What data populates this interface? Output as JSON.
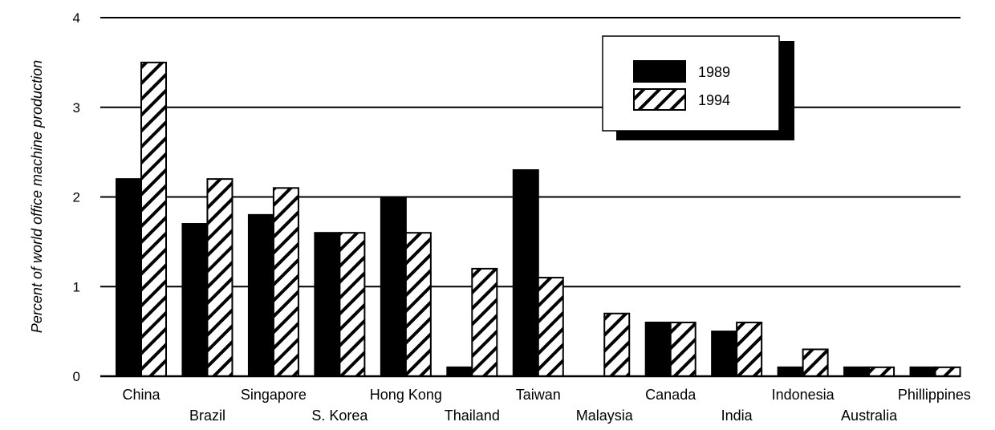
{
  "chart_data": {
    "type": "bar",
    "title": "",
    "xlabel": "",
    "ylabel": "Percent of world office machine production",
    "ylim": [
      0,
      4
    ],
    "yticks": [
      "0",
      "1",
      "2",
      "3",
      "4"
    ],
    "grid": true,
    "legend_position": "top-right",
    "categories": [
      "China",
      "Brazil",
      "Singapore",
      "S. Korea",
      "Hong Kong",
      "Thailand",
      "Taiwan",
      "Malaysia",
      "Canada",
      "India",
      "Indonesia",
      "Australia",
      "Phillippines"
    ],
    "series": [
      {
        "name": "1989",
        "values": [
          2.2,
          1.7,
          1.8,
          1.6,
          2.0,
          0.1,
          2.3,
          0.0,
          0.6,
          0.5,
          0.1,
          0.1,
          0.1
        ],
        "color": "#000000",
        "pattern": "solid"
      },
      {
        "name": "1994",
        "values": [
          3.5,
          2.2,
          2.1,
          1.6,
          1.6,
          1.2,
          1.1,
          0.7,
          0.6,
          0.6,
          0.3,
          0.1,
          0.1
        ],
        "color": "#000000",
        "pattern": "diagonal-hatch"
      }
    ]
  }
}
